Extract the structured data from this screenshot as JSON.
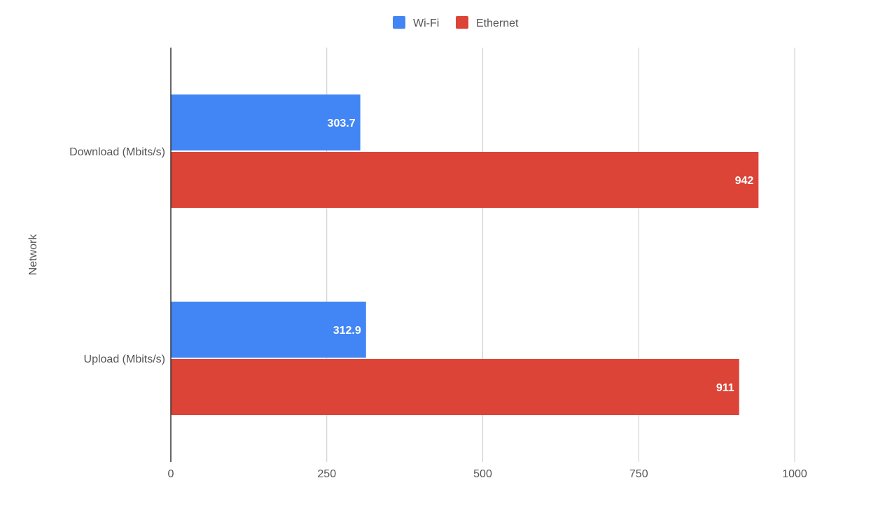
{
  "chart_data": {
    "type": "bar",
    "orientation": "horizontal",
    "title": "",
    "xlabel": "",
    "ylabel": "Network",
    "categories": [
      "Download (Mbits/s)",
      "Upload (Mbits/s)"
    ],
    "series": [
      {
        "name": "Wi-Fi",
        "values": [
          303.7,
          312.9
        ],
        "labels": [
          "303.7",
          "312.9"
        ],
        "color": "#4285f4"
      },
      {
        "name": "Ethernet",
        "values": [
          942,
          911
        ],
        "labels": [
          "942",
          "911"
        ],
        "color": "#db4437"
      }
    ],
    "xlim": [
      0,
      1000
    ],
    "xticks": [
      0,
      250,
      500,
      750,
      1000
    ],
    "xtick_labels": [
      "0",
      "250",
      "500",
      "750",
      "1000"
    ],
    "grid": true,
    "legend_position": "top-center"
  }
}
